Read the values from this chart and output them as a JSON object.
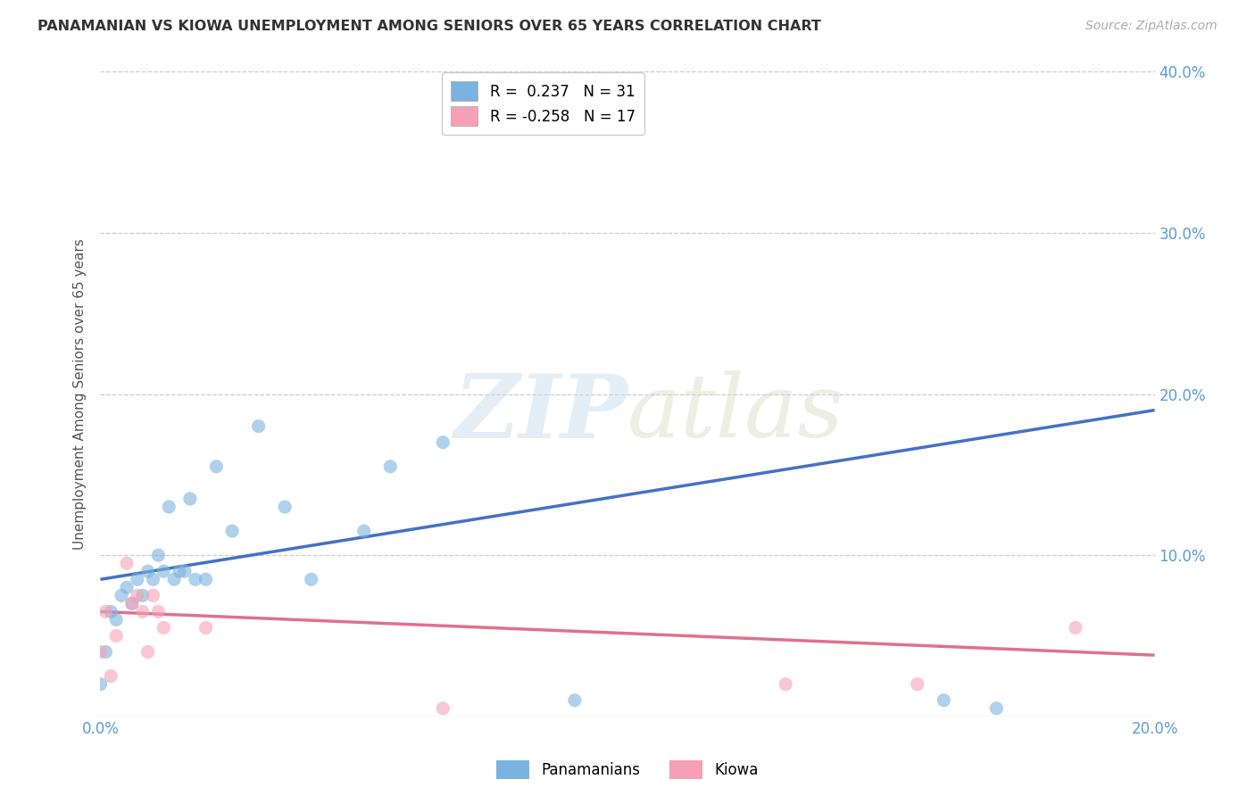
{
  "title": "PANAMANIAN VS KIOWA UNEMPLOYMENT AMONG SENIORS OVER 65 YEARS CORRELATION CHART",
  "source": "Source: ZipAtlas.com",
  "ylabel": "Unemployment Among Seniors over 65 years",
  "xlim": [
    0.0,
    0.2
  ],
  "ylim": [
    0.0,
    0.4
  ],
  "xticks": [
    0.0,
    0.05,
    0.1,
    0.15,
    0.2
  ],
  "yticks": [
    0.0,
    0.1,
    0.2,
    0.3,
    0.4
  ],
  "xticklabels": [
    "0.0%",
    "",
    "",
    "",
    "20.0%"
  ],
  "yticklabels_right": [
    "",
    "10.0%",
    "20.0%",
    "30.0%",
    "40.0%"
  ],
  "panamanian_color": "#7ab3e0",
  "kiowa_color": "#f5a0b5",
  "panamanian_scatter_x": [
    0.0,
    0.001,
    0.002,
    0.003,
    0.004,
    0.005,
    0.006,
    0.007,
    0.008,
    0.009,
    0.01,
    0.011,
    0.012,
    0.013,
    0.014,
    0.015,
    0.016,
    0.017,
    0.018,
    0.02,
    0.022,
    0.025,
    0.03,
    0.035,
    0.04,
    0.05,
    0.055,
    0.065,
    0.09,
    0.16,
    0.17
  ],
  "panamanian_scatter_y": [
    0.02,
    0.04,
    0.065,
    0.06,
    0.075,
    0.08,
    0.07,
    0.085,
    0.075,
    0.09,
    0.085,
    0.1,
    0.09,
    0.13,
    0.085,
    0.09,
    0.09,
    0.135,
    0.085,
    0.085,
    0.155,
    0.115,
    0.18,
    0.13,
    0.085,
    0.115,
    0.155,
    0.17,
    0.01,
    0.01,
    0.005
  ],
  "kiowa_scatter_x": [
    0.0,
    0.001,
    0.002,
    0.003,
    0.005,
    0.006,
    0.007,
    0.008,
    0.009,
    0.01,
    0.011,
    0.012,
    0.02,
    0.065,
    0.13,
    0.155,
    0.185
  ],
  "kiowa_scatter_y": [
    0.04,
    0.065,
    0.025,
    0.05,
    0.095,
    0.07,
    0.075,
    0.065,
    0.04,
    0.075,
    0.065,
    0.055,
    0.055,
    0.005,
    0.02,
    0.02,
    0.055
  ],
  "pan_trend_x": [
    0.0,
    0.2
  ],
  "pan_trend_y": [
    0.085,
    0.19
  ],
  "kio_trend_x": [
    0.0,
    0.2
  ],
  "kio_trend_y": [
    0.065,
    0.038
  ],
  "watermark_zip": "ZIP",
  "watermark_atlas": "atlas",
  "legend_pan_label": "R =  0.237   N = 31",
  "legend_kio_label": "R = -0.258   N = 17",
  "background_color": "#ffffff",
  "grid_color": "#cccccc",
  "pan_label": "Panamanians",
  "kio_label": "Kiowa"
}
